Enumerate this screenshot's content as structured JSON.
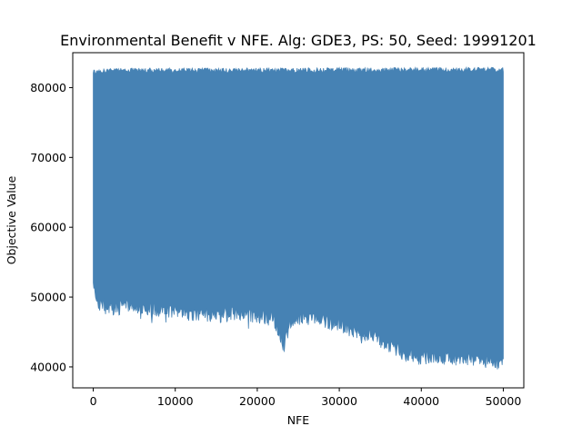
{
  "chart_data": {
    "type": "line",
    "title": "Environmental Benefit v NFE. Alg: GDE3, PS: 50, Seed: 19991201",
    "xlabel": "NFE",
    "ylabel": "Objective Value",
    "xlim": [
      -2500,
      52500
    ],
    "ylim": [
      37000,
      85000
    ],
    "xticks": [
      0,
      10000,
      20000,
      30000,
      40000,
      50000
    ],
    "yticks": [
      40000,
      50000,
      60000,
      70000,
      80000
    ],
    "grid": false,
    "legend": "none",
    "series": [
      {
        "color": "#4682b4",
        "x_range": [
          0,
          50000
        ],
        "upper_envelope": {
          "x": [
            0,
            5000,
            10000,
            15000,
            20000,
            25000,
            30000,
            35000,
            40000,
            45000,
            50000
          ],
          "y": [
            82700,
            82800,
            82800,
            82800,
            82800,
            82800,
            82850,
            82850,
            82900,
            82900,
            82900
          ]
        },
        "lower_envelope": {
          "x": [
            0,
            500,
            2500,
            5000,
            8000,
            10000,
            12000,
            15000,
            17000,
            20000,
            22000,
            23300,
            24000,
            25000,
            27000,
            30000,
            32000,
            34000,
            36000,
            38000,
            40000,
            42000,
            44000,
            46000,
            48000,
            50000
          ],
          "y": [
            51000,
            48000,
            47300,
            47500,
            47200,
            47000,
            46600,
            46300,
            46500,
            46200,
            45800,
            42000,
            45500,
            46000,
            45800,
            45000,
            44000,
            43500,
            42000,
            40800,
            40200,
            40500,
            40200,
            40000,
            39800,
            39500
          ]
        }
      }
    ]
  }
}
